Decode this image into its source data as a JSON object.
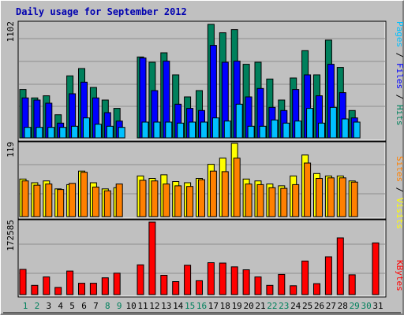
{
  "title": "Daily usage for September 2012",
  "colors": {
    "background": "#c0c0c0",
    "title": "#0000b0",
    "grid": "#8e8e8e",
    "hits": "#00805c",
    "files": "#0000ff",
    "pages": "#00c0ff",
    "visits": "#ffff00",
    "sites": "#ff8000",
    "kbytes": "#ff0000",
    "weekday_label": "#000000",
    "weekend_label": "#00805c"
  },
  "chart_data": [
    {
      "type": "bar",
      "panel": "hits-files-pages",
      "ymax_label": "1102",
      "ymax": 1102,
      "legend": [
        {
          "name": "Pages",
          "key": "pages"
        },
        {
          "name": "Files",
          "key": "files"
        },
        {
          "name": "Hits",
          "key": "hits"
        }
      ],
      "separator": " / ",
      "categories": [
        "1",
        "2",
        "3",
        "4",
        "5",
        "6",
        "7",
        "8",
        "9",
        "10",
        "11",
        "12",
        "13",
        "14",
        "15",
        "16",
        "17",
        "18",
        "19",
        "20",
        "21",
        "22",
        "23",
        "24",
        "25",
        "26",
        "27",
        "28",
        "29",
        "30",
        "31"
      ],
      "series": [
        {
          "name": "Hits",
          "key": "hits",
          "values": [
            460,
            380,
            400,
            220,
            590,
            660,
            480,
            360,
            280,
            0,
            770,
            720,
            810,
            600,
            390,
            450,
            1080,
            1000,
            1030,
            700,
            720,
            560,
            360,
            570,
            830,
            600,
            930,
            670,
            260,
            0,
            0
          ]
        },
        {
          "name": "Files",
          "key": "files",
          "values": [
            380,
            360,
            330,
            140,
            420,
            530,
            380,
            240,
            160,
            0,
            760,
            450,
            730,
            320,
            280,
            260,
            880,
            720,
            730,
            390,
            470,
            290,
            260,
            460,
            600,
            400,
            700,
            430,
            190,
            0,
            0
          ]
        },
        {
          "name": "Pages",
          "key": "pages",
          "values": [
            100,
            100,
            100,
            100,
            110,
            190,
            130,
            110,
            100,
            0,
            150,
            150,
            150,
            140,
            150,
            150,
            190,
            160,
            320,
            110,
            110,
            170,
            140,
            160,
            280,
            140,
            290,
            180,
            150,
            0,
            0
          ]
        }
      ]
    },
    {
      "type": "bar",
      "panel": "visits-sites",
      "ymax_label": "119",
      "ymax": 119,
      "legend": [
        {
          "name": "Sites",
          "key": "sites"
        },
        {
          "name": "Visits",
          "key": "visits"
        }
      ],
      "separator": " / ",
      "categories": [
        "1",
        "2",
        "3",
        "4",
        "5",
        "6",
        "7",
        "8",
        "9",
        "10",
        "11",
        "12",
        "13",
        "14",
        "15",
        "16",
        "17",
        "18",
        "19",
        "20",
        "21",
        "22",
        "23",
        "24",
        "25",
        "26",
        "27",
        "28",
        "29",
        "30",
        "31"
      ],
      "series": [
        {
          "name": "Visits",
          "key": "visits",
          "values": [
            61,
            55,
            58,
            45,
            52,
            74,
            55,
            45,
            47,
            0,
            66,
            62,
            68,
            57,
            55,
            62,
            85,
            95,
            119,
            61,
            58,
            53,
            50,
            66,
            100,
            70,
            66,
            66,
            58,
            0,
            0
          ]
        },
        {
          "name": "Sites",
          "key": "sites",
          "values": [
            58,
            51,
            53,
            44,
            54,
            72,
            48,
            42,
            53,
            0,
            59,
            58,
            53,
            50,
            49,
            60,
            74,
            73,
            95,
            53,
            52,
            47,
            46,
            52,
            87,
            62,
            63,
            63,
            56,
            0,
            0
          ]
        }
      ]
    },
    {
      "type": "bar",
      "panel": "kbytes",
      "ymax_label": "172585",
      "ymax": 172585,
      "legend": [
        {
          "name": "KBytes",
          "key": "kbytes"
        }
      ],
      "categories": [
        "1",
        "2",
        "3",
        "4",
        "5",
        "6",
        "7",
        "8",
        "9",
        "10",
        "11",
        "12",
        "13",
        "14",
        "15",
        "16",
        "17",
        "18",
        "19",
        "20",
        "21",
        "22",
        "23",
        "24",
        "25",
        "26",
        "27",
        "28",
        "29",
        "30",
        "31"
      ],
      "series": [
        {
          "name": "KBytes",
          "key": "kbytes",
          "values": [
            60000,
            22000,
            42000,
            17000,
            56000,
            27000,
            27000,
            40000,
            51000,
            0,
            71000,
            172585,
            46000,
            31000,
            70000,
            33000,
            76000,
            75000,
            66000,
            59000,
            42000,
            22000,
            48000,
            21000,
            80000,
            26000,
            90000,
            135000,
            47000,
            0,
            123000
          ]
        }
      ]
    }
  ],
  "x_labels": [
    {
      "text": "1",
      "weekend": true
    },
    {
      "text": "2",
      "weekend": true
    },
    {
      "text": "3",
      "weekend": false
    },
    {
      "text": "4",
      "weekend": false
    },
    {
      "text": "5",
      "weekend": false
    },
    {
      "text": "6",
      "weekend": false
    },
    {
      "text": "7",
      "weekend": false
    },
    {
      "text": "8",
      "weekend": true
    },
    {
      "text": "9",
      "weekend": true
    },
    {
      "text": "10",
      "weekend": false
    },
    {
      "text": "11",
      "weekend": false
    },
    {
      "text": "12",
      "weekend": false
    },
    {
      "text": "13",
      "weekend": false
    },
    {
      "text": "14",
      "weekend": false
    },
    {
      "text": "15",
      "weekend": true
    },
    {
      "text": "16",
      "weekend": true
    },
    {
      "text": "17",
      "weekend": false
    },
    {
      "text": "18",
      "weekend": false
    },
    {
      "text": "19",
      "weekend": false
    },
    {
      "text": "20",
      "weekend": false
    },
    {
      "text": "21",
      "weekend": false
    },
    {
      "text": "22",
      "weekend": true
    },
    {
      "text": "23",
      "weekend": true
    },
    {
      "text": "24",
      "weekend": false
    },
    {
      "text": "25",
      "weekend": false
    },
    {
      "text": "26",
      "weekend": false
    },
    {
      "text": "27",
      "weekend": false
    },
    {
      "text": "28",
      "weekend": false
    },
    {
      "text": "29",
      "weekend": true
    },
    {
      "text": "30",
      "weekend": true
    },
    {
      "text": "31",
      "weekend": false
    }
  ]
}
